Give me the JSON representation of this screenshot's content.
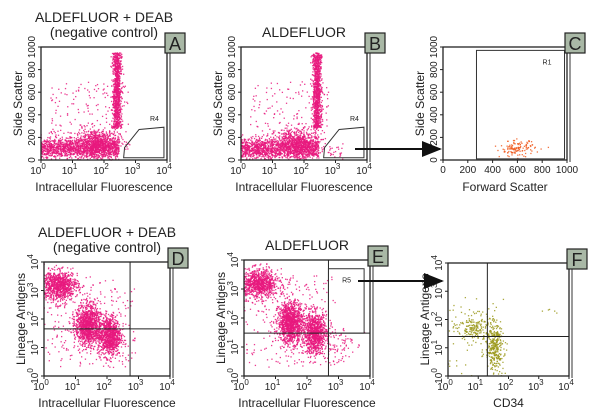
{
  "chart_data": [
    {
      "id": "A",
      "type": "scatter",
      "panel_label": "A",
      "title": [
        "ALDEFLUOR + DEAB",
        "(negative control)"
      ],
      "xlabel": "Intracellular Fluorescence",
      "ylabel": "Side Scatter",
      "xscale": "log",
      "xlim": [
        1,
        10000
      ],
      "yscale": "linear",
      "ylim": [
        0,
        1000
      ],
      "yticks": [
        0,
        200,
        400,
        600,
        800,
        1000
      ],
      "point_color": "#e8197e",
      "populations": [
        {
          "x": [
            1,
            300
          ],
          "y": 100,
          "sy": 45,
          "n": 1400
        },
        {
          "x": 60,
          "sx": 0.35,
          "y": 160,
          "sy": 60,
          "n": 500
        },
        {
          "x": 260,
          "sx": 0.07,
          "y": [
            280,
            950
          ],
          "n": 900
        },
        {
          "x": [
            2,
            600
          ],
          "y": [
            150,
            700
          ],
          "n": 150
        }
      ],
      "gate": {
        "name": "R4",
        "shape": "polygon",
        "points": [
          [
            420,
            20
          ],
          [
            450,
            110
          ],
          [
            1300,
            270
          ],
          [
            8000,
            290
          ],
          [
            8000,
            20
          ]
        ]
      }
    },
    {
      "id": "B",
      "type": "scatter",
      "panel_label": "B",
      "title": [
        "ALDEFLUOR"
      ],
      "xlabel": "Intracellular Fluorescence",
      "ylabel": "Side Scatter",
      "xscale": "log",
      "xlim": [
        1,
        10000
      ],
      "yscale": "linear",
      "ylim": [
        0,
        1000
      ],
      "yticks": [
        0,
        200,
        400,
        600,
        800,
        1000
      ],
      "point_color": "#e8197e",
      "populations": [
        {
          "x": [
            1,
            300
          ],
          "y": 100,
          "sy": 45,
          "n": 1400
        },
        {
          "x": 60,
          "sx": 0.35,
          "y": 160,
          "sy": 60,
          "n": 500
        },
        {
          "x": 260,
          "sx": 0.07,
          "y": [
            280,
            950
          ],
          "n": 900
        },
        {
          "x": [
            2,
            600
          ],
          "y": [
            150,
            700
          ],
          "n": 150
        },
        {
          "x": 900,
          "sx": 0.15,
          "y": 80,
          "sy": 30,
          "n": 25
        }
      ],
      "gate": {
        "name": "R4",
        "shape": "polygon",
        "points": [
          [
            420,
            20
          ],
          [
            450,
            110
          ],
          [
            1300,
            270
          ],
          [
            8000,
            290
          ],
          [
            8000,
            20
          ]
        ]
      }
    },
    {
      "id": "C",
      "type": "scatter",
      "panel_label": "C",
      "title": [],
      "xlabel": "Forward Scatter",
      "ylabel": "Side Scatter",
      "xscale": "linear",
      "xlim": [
        0,
        1000
      ],
      "yscale": "linear",
      "ylim": [
        0,
        1000
      ],
      "xticks": [
        0,
        200,
        400,
        600,
        800,
        1000
      ],
      "yticks": [
        0,
        200,
        400,
        600,
        800,
        1000
      ],
      "point_color": "#f05a1e",
      "populations": [
        {
          "x": 600,
          "sx": 70,
          "y": 100,
          "sy": 35,
          "n": 120
        }
      ],
      "gate": {
        "name": "R1",
        "shape": "rect",
        "points": [
          [
            270,
            10
          ],
          [
            980,
            970
          ]
        ]
      }
    },
    {
      "id": "D",
      "type": "scatter",
      "panel_label": "D",
      "title": [
        "ALDEFLUOR + DEAB",
        "(negative control)"
      ],
      "xlabel": "Intracellular Fluorescence",
      "ylabel": "Lineage Antigens",
      "xscale": "log",
      "xlim": [
        1,
        10000
      ],
      "yscale": "log",
      "ylim": [
        1,
        10000
      ],
      "point_color": "#e8197e",
      "quadrant": {
        "x": 540,
        "y": 45
      },
      "populations": [
        {
          "x": 3,
          "sx": 0.3,
          "y": 1500,
          "sy": 0.25,
          "n": 900
        },
        {
          "x": 25,
          "sx": 0.2,
          "y": 60,
          "sy": 0.35,
          "n": 1100
        },
        {
          "x": 120,
          "sx": 0.18,
          "y": 25,
          "sy": 0.35,
          "n": 900
        },
        {
          "x": [
            1,
            800
          ],
          "y": [
            2,
            3000
          ],
          "n": 250
        }
      ]
    },
    {
      "id": "E",
      "type": "scatter",
      "panel_label": "E",
      "title": [
        "ALDEFLUOR"
      ],
      "xlabel": "Intracellular Fluorescence",
      "ylabel": "Lineage Antigens",
      "xscale": "log",
      "xlim": [
        1,
        10000
      ],
      "yscale": "log",
      "ylim": [
        1,
        10000
      ],
      "point_color": "#e8197e",
      "quadrant": {
        "x": 480,
        "y": 30
      },
      "populations": [
        {
          "x": 3,
          "sx": 0.3,
          "y": 1500,
          "sy": 0.25,
          "n": 900
        },
        {
          "x": 30,
          "sx": 0.2,
          "y": 70,
          "sy": 0.35,
          "n": 1100
        },
        {
          "x": 180,
          "sx": 0.18,
          "y": 30,
          "sy": 0.35,
          "n": 900
        },
        {
          "x": 1000,
          "sx": 0.25,
          "y": 12,
          "sy": 0.35,
          "n": 70
        },
        {
          "x": [
            1,
            800
          ],
          "y": [
            2,
            3000
          ],
          "n": 250
        }
      ],
      "gate": {
        "name": "R5",
        "shape": "rect",
        "points": [
          [
            480,
            30
          ],
          [
            6500,
            5000
          ]
        ]
      }
    },
    {
      "id": "F",
      "type": "scatter",
      "panel_label": "F",
      "title": [],
      "xlabel": "CD34",
      "ylabel": "Lineage Antigens",
      "xscale": "log",
      "xlim": [
        1,
        10000
      ],
      "yscale": "log",
      "ylim": [
        1,
        10000
      ],
      "point_color": "#9c9a1e",
      "quadrant": {
        "x": 20,
        "y": 25
      },
      "populations": [
        {
          "x": 8,
          "sx": 0.3,
          "y": 50,
          "sy": 0.25,
          "n": 200
        },
        {
          "x": 35,
          "sx": 0.15,
          "y": 10,
          "sy": 0.4,
          "n": 300
        },
        {
          "x": 3000,
          "sx": 0.2,
          "y": 200,
          "sy": 0.1,
          "n": 5
        },
        {
          "x": [
            1,
            60
          ],
          "y": [
            1,
            600
          ],
          "n": 40
        }
      ]
    }
  ]
}
